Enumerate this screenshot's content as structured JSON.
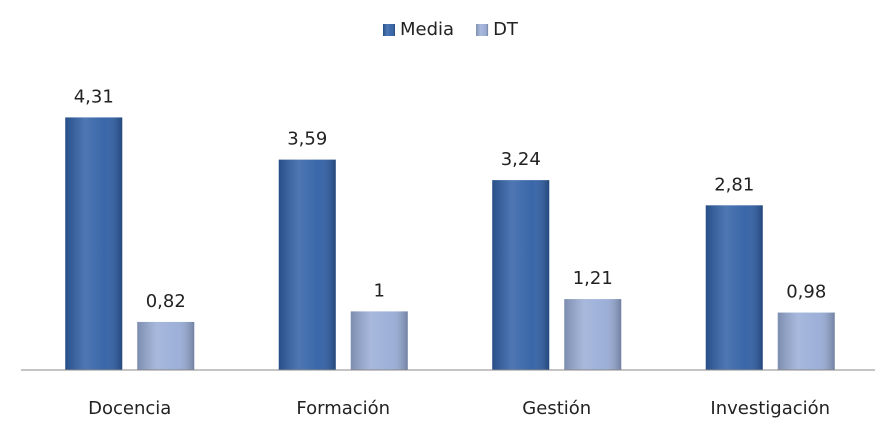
{
  "chart_data": {
    "type": "bar",
    "categories": [
      "Docencia",
      "Formación",
      "Gestión",
      "Investigación"
    ],
    "series": [
      {
        "name": "Media",
        "color": "#2f5fa5",
        "values": [
          4.31,
          3.59,
          3.24,
          2.81
        ],
        "value_labels": [
          "4,31",
          "3,59",
          "3,24",
          "2,81"
        ]
      },
      {
        "name": "DT",
        "color": "#98acd6",
        "values": [
          0.82,
          1,
          1.21,
          0.98
        ],
        "value_labels": [
          "0,82",
          "1",
          "1,21",
          "0,98"
        ]
      }
    ],
    "ylim": [
      0,
      5
    ],
    "legend": "top"
  }
}
